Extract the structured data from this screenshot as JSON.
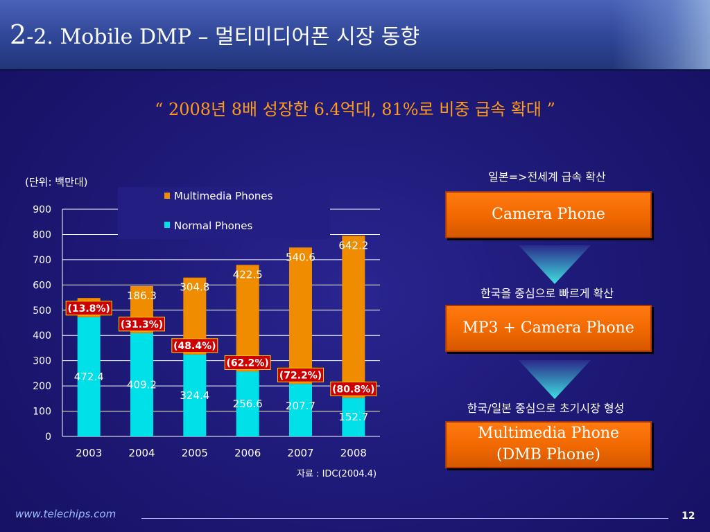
{
  "title": {
    "number": "2",
    "rest": "-2. Mobile DMP – 멀티미디어폰 시장 동향"
  },
  "subtitle": "“ 2008년 8배 성장한 6.4억대, 81%로 비중 급속 확대 ”",
  "unit_label": "(단위: 백만대)",
  "chart_data": {
    "type": "bar",
    "stacked": true,
    "categories": [
      "2003",
      "2004",
      "2005",
      "2006",
      "2007",
      "2008"
    ],
    "series": [
      {
        "name": "Normal Phones",
        "color": "#00e0e8",
        "values": [
          472.4,
          409.2,
          324.4,
          256.6,
          207.7,
          152.7
        ]
      },
      {
        "name": "Multimedia Phones",
        "color": "#f08c00",
        "values": [
          75.9,
          186.3,
          304.8,
          422.5,
          540.6,
          642.2
        ]
      }
    ],
    "share_labels": [
      "(13.8%)",
      "(31.3%)",
      "(48.4%)",
      "(62.2%)",
      "(72.2%)",
      "(80.8%)"
    ],
    "ylim": [
      0,
      900
    ],
    "yticks": [
      0,
      100,
      200,
      300,
      400,
      500,
      600,
      700,
      800,
      900
    ],
    "grid": true,
    "legend": "top-left"
  },
  "flow": {
    "label1": "일본=>전세계 급속 확산",
    "box1": "Camera Phone",
    "label2": "한국을 중심으로 빠르게 확산",
    "box2": "MP3 +  Camera Phone",
    "label3": "한국/일본 중심으로 초기시장 형성",
    "box3_line1": "Multimedia Phone",
    "box3_line2": "(DMB Phone)"
  },
  "source": "자료 : IDC(2004.4)",
  "footer": {
    "url": "www.telechips.com",
    "page": "12"
  }
}
